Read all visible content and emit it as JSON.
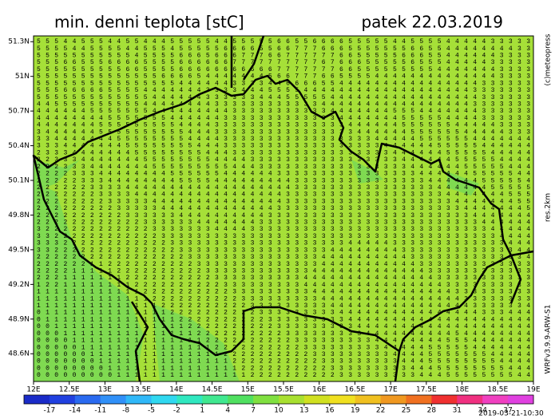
{
  "map": {
    "title": "min. denni teplota [stC]",
    "date": "patek 22.03.2019",
    "copyright": "(c)meteopress",
    "resolution": "res.2km",
    "model": "WRFv3.9.9-ARW-S1",
    "run": "2019-03-21-10:30",
    "lonlim": [
      12,
      19
    ],
    "latlim": [
      48.36,
      51.35
    ],
    "lat_ticks": [
      {
        "value": 51.3,
        "label": "51.3N"
      },
      {
        "value": 51,
        "label": "51N"
      },
      {
        "value": 50.7,
        "label": "50.7N"
      },
      {
        "value": 50.4,
        "label": "50.4N"
      },
      {
        "value": 50.1,
        "label": "50.1N"
      },
      {
        "value": 49.8,
        "label": "49.8N"
      },
      {
        "value": 49.5,
        "label": "49.5N"
      },
      {
        "value": 49.2,
        "label": "49.2N"
      },
      {
        "value": 48.9,
        "label": "48.9N"
      },
      {
        "value": 48.6,
        "label": "48.6N"
      }
    ],
    "lon_ticks": [
      {
        "value": 12,
        "label": "12E"
      },
      {
        "value": 12.5,
        "label": "12.5E"
      },
      {
        "value": 13,
        "label": "13E"
      },
      {
        "value": 13.5,
        "label": "13.5E"
      },
      {
        "value": 14,
        "label": "14E"
      },
      {
        "value": 14.5,
        "label": "14.5E"
      },
      {
        "value": 15,
        "label": "15E"
      },
      {
        "value": 15.5,
        "label": "15.5E"
      },
      {
        "value": 16,
        "label": "16E"
      },
      {
        "value": 16.5,
        "label": "16.5E"
      },
      {
        "value": 17,
        "label": "17E"
      },
      {
        "value": 17.5,
        "label": "17.5E"
      },
      {
        "value": 18,
        "label": "18E"
      },
      {
        "value": 18.5,
        "label": "18.5E"
      },
      {
        "value": 19,
        "label": "19E"
      }
    ],
    "colorbar": {
      "range": [
        -20,
        40
      ],
      "colors": [
        "#1a2bc8",
        "#2040e0",
        "#2a6af0",
        "#3090f8",
        "#30b8f8",
        "#30d8f0",
        "#30e8c0",
        "#40e890",
        "#50e060",
        "#80e040",
        "#a8e030",
        "#d0e020",
        "#f0e020",
        "#f0c020",
        "#f09820",
        "#f07020",
        "#f03030",
        "#f03080",
        "#f040c0",
        "#e040e0"
      ],
      "ticks": [
        -17,
        -14,
        -11,
        -8,
        -5,
        -2,
        1,
        4,
        7,
        10,
        13,
        16,
        19,
        22,
        25,
        28,
        31,
        34,
        37
      ]
    },
    "grid_rows": [
      "55544555445544455555445555566556666555554455554444433333",
      "55554455554455545555566665566777666555555566554444444433",
      "55555555555455556665666777667777776655555666554444443333",
      "55566555666655556666667777777777676665555565554444433333",
      "55555555556655556666666666677777776655555555544444443333",
      "55555555555555666654444444566777665555444444444444443333",
      "55555555555555554444443333446666554444444444444444333333",
      "55566666555544444443333444555544444444444444444443333333",
      "55555555555554444443333334445555544444444444444444333333",
      "44555555555544444444333333333333444444444444444443333333",
      "44444455555554444444443333333333344444445554444444333333",
      "44444444555555544444433333333333334444444555554444333333",
      "44444445555555554444333333333333333444444555555444443333",
      "34444445555555555444333333333333333344444455555544444333",
      "33444444455555555444433333333333333333444445555554444444",
      "33344444445555555544433333333333333333344444455555444444",
      "23334444444555555554443333333333333333334444445555544444",
      "22333444444455555555444433333333333333333444444555554444",
      "22233344444445555555554443333333333333333344444455555444",
      "22223334444444455555544444433333333333333334444445555544",
      "22222333444444445555444444444333333333333333444444555554",
      "22222233334444444444444444444333333333333333344444455555",
      "22222223333444444444444444443333333333333333334444444555",
      "22222222333334444444444444443333333333333333333444444455",
      "22222222233333444444444444433333333333333333333344444445",
      "22222222223333334444444444333333333333333333333334444444",
      "22222222222233333344444443333333333333333333333333444444",
      "32222222222223333333444433333333333333333333333333344444",
      "33222222222222333333333333333333333333333333333333334444",
      "33322222222222233333333333333333333444443333333333333444",
      "33222222222222223333333333333333344444444333333333333344",
      "22222222222222222333333333333333444444444433333333333334",
      "22222211222222222233333333333333444444444443333333333333",
      "22221111122222222223333333333334444444444444333333333333",
      "22211111112222222222333333333344444444444444433333333333",
      "12211111111222222222233333333344444444444444443333333333",
      "11111111111122222222223333333334444444444444444333333333",
      "11111111111112222222222333333333444444444444444433333333",
      "11111111111111222222222233333333344444444444444443333334",
      "01111111111111122222222223333333334444444444444444333444",
      "01111111111111112222222222333333333444444444444444444444",
      "00111111111111111222222222233333333344444444444444444444",
      "00011111111111111122222222223333333334444444444544444444",
      "00001111111111111112222222222333333333444444445554444444",
      "00000111111111111111222222222233333333344444555554444444",
      "00000011111111111111122222222223333333334444555555544444",
      "00000001111111111111112222222222333333333444555555554444",
      "00000000111111111111111222222222233333333344455555555444",
      "00000000011111111111111122222222223333333334445555555544"
    ]
  }
}
